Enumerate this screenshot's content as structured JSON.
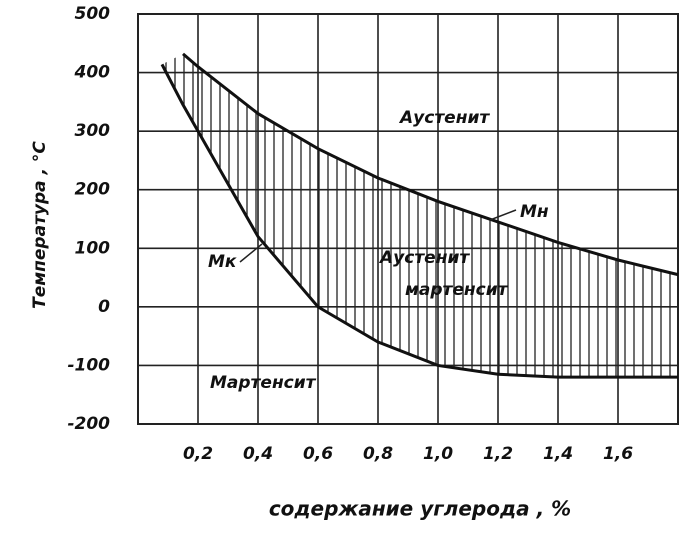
{
  "chart_data": {
    "type": "line",
    "y_label": "Температура , °C",
    "x_label": "содержание углерода , %",
    "x": [
      0.08,
      0.15,
      0.2,
      0.4,
      0.6,
      0.8,
      1.0,
      1.2,
      1.4,
      1.6,
      1.8
    ],
    "series": [
      {
        "name": "Мн",
        "color": "#111111",
        "values": [
          null,
          432,
          410,
          330,
          270,
          220,
          180,
          145,
          110,
          80,
          55
        ]
      },
      {
        "name": "Мк",
        "color": "#111111",
        "values": [
          414,
          345,
          300,
          120,
          0,
          -60,
          -100,
          -115,
          -120,
          -120,
          -120
        ]
      }
    ],
    "annotations": [
      "Аустенит",
      "Аустенит",
      "мартенсит",
      "Мартенсит"
    ],
    "xlim": [
      0,
      1.8
    ],
    "ylim": [
      -200,
      500
    ],
    "xticks": [
      {
        "value": 0.2,
        "label": "0,2"
      },
      {
        "value": 0.4,
        "label": "0,4"
      },
      {
        "value": 0.6,
        "label": "0,6"
      },
      {
        "value": 0.8,
        "label": "0,8"
      },
      {
        "value": 1.0,
        "label": "1,0"
      },
      {
        "value": 1.2,
        "label": "1,2"
      },
      {
        "value": 1.4,
        "label": "1,4"
      },
      {
        "value": 1.6,
        "label": "1,6"
      }
    ],
    "yticks": [
      -200,
      -100,
      0,
      100,
      200,
      300,
      400,
      500
    ],
    "grid": true
  }
}
